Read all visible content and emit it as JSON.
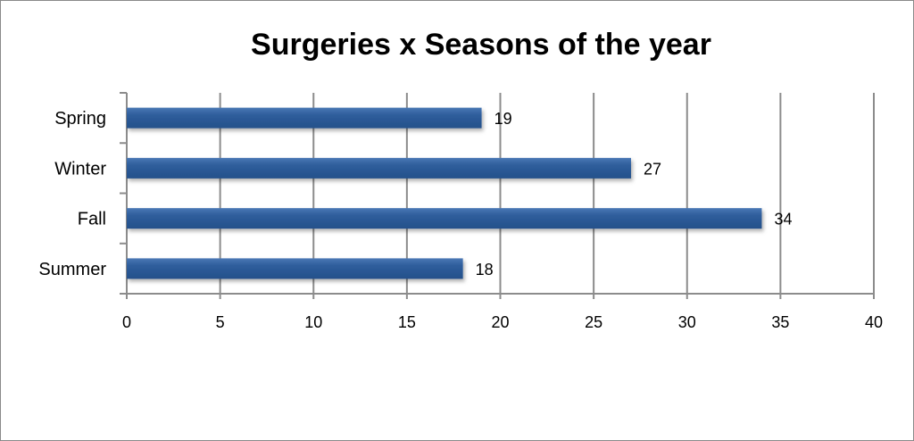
{
  "chart_data": {
    "type": "bar",
    "orientation": "horizontal",
    "title": "Surgeries x Seasons of the year",
    "categories": [
      "Spring",
      "Winter",
      "Fall",
      "Summer"
    ],
    "values": [
      19,
      27,
      34,
      18
    ],
    "data_labels": [
      "19",
      "27",
      "34",
      "18"
    ],
    "xlabel": "",
    "ylabel": "",
    "xlim": [
      0,
      40
    ],
    "x_ticks": [
      "0",
      "5",
      "10",
      "15",
      "20",
      "25",
      "30",
      "35",
      "40"
    ],
    "grid": "vertical",
    "legend": "none",
    "bar_color": "#2f5e9c",
    "grid_color": "#8c8c8c"
  }
}
